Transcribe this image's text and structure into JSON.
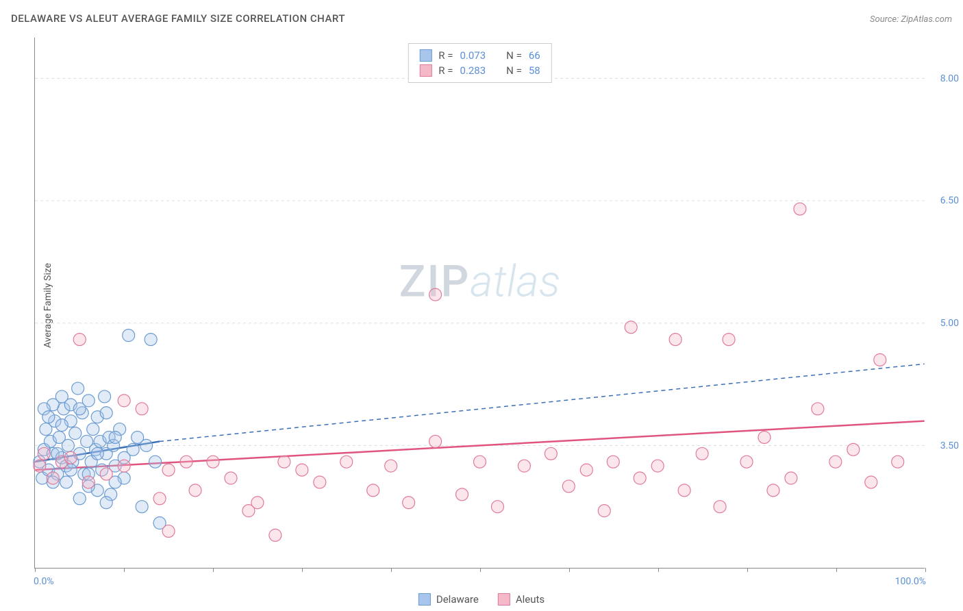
{
  "header": {
    "title": "DELAWARE VS ALEUT AVERAGE FAMILY SIZE CORRELATION CHART",
    "source_prefix": "Source: ",
    "source_name": "ZipAtlas.com"
  },
  "axes": {
    "ylabel": "Average Family Size",
    "ylabel_fontsize": 14,
    "ylabel_color": "#555555",
    "x_min_label": "0.0%",
    "x_max_label": "100.0%",
    "x_tick_color": "#888888",
    "axis_label_color": "#5b8fd6",
    "xlim": [
      0,
      100
    ],
    "ylim": [
      2.0,
      8.5
    ],
    "y_ticks": [
      3.5,
      5.0,
      6.5,
      8.0
    ],
    "x_tick_positions": [
      0,
      10,
      20,
      30,
      40,
      50,
      60,
      70,
      80,
      90,
      100
    ],
    "grid_color": "#dddddd",
    "grid_dash": "4,4",
    "axis_line_color": "#888888"
  },
  "chart": {
    "type": "scatter",
    "background_color": "#ffffff",
    "marker_radius": 9,
    "marker_stroke_width": 1.2,
    "marker_fill_opacity": 0.35,
    "series": [
      {
        "id": "delaware",
        "label": "Delaware",
        "color_fill": "#a8c5ec",
        "color_stroke": "#6b9bd1",
        "points": [
          [
            0.5,
            3.3
          ],
          [
            0.8,
            3.1
          ],
          [
            1.0,
            3.45
          ],
          [
            1.2,
            3.7
          ],
          [
            1.5,
            3.2
          ],
          [
            1.7,
            3.55
          ],
          [
            2.0,
            3.4
          ],
          [
            2.2,
            3.8
          ],
          [
            2.5,
            3.15
          ],
          [
            2.7,
            3.6
          ],
          [
            3.0,
            3.35
          ],
          [
            3.2,
            3.95
          ],
          [
            3.5,
            3.25
          ],
          [
            3.7,
            3.5
          ],
          [
            4.0,
            4.0
          ],
          [
            4.2,
            3.3
          ],
          [
            4.5,
            3.65
          ],
          [
            4.8,
            4.2
          ],
          [
            5.0,
            3.4
          ],
          [
            5.3,
            3.9
          ],
          [
            5.5,
            3.15
          ],
          [
            5.8,
            3.55
          ],
          [
            6.0,
            4.05
          ],
          [
            6.3,
            3.3
          ],
          [
            6.5,
            3.7
          ],
          [
            6.8,
            3.45
          ],
          [
            7.0,
            2.95
          ],
          [
            7.3,
            3.55
          ],
          [
            7.5,
            3.2
          ],
          [
            7.8,
            4.1
          ],
          [
            8.0,
            3.4
          ],
          [
            8.3,
            3.6
          ],
          [
            8.5,
            2.9
          ],
          [
            8.8,
            3.5
          ],
          [
            9.0,
            3.25
          ],
          [
            9.5,
            3.7
          ],
          [
            10.0,
            3.35
          ],
          [
            10.5,
            4.85
          ],
          [
            11.0,
            3.45
          ],
          [
            11.5,
            3.6
          ],
          [
            12.0,
            2.75
          ],
          [
            12.5,
            3.5
          ],
          [
            13.0,
            4.8
          ],
          [
            13.5,
            3.3
          ],
          [
            14.0,
            2.55
          ],
          [
            2.0,
            4.0
          ],
          [
            3.0,
            4.1
          ],
          [
            4.0,
            3.8
          ],
          [
            5.0,
            2.85
          ],
          [
            6.0,
            3.0
          ],
          [
            7.0,
            3.85
          ],
          [
            8.0,
            2.8
          ],
          [
            9.0,
            3.6
          ],
          [
            10.0,
            3.1
          ],
          [
            1.0,
            3.95
          ],
          [
            2.0,
            3.05
          ],
          [
            3.0,
            3.75
          ],
          [
            4.0,
            3.2
          ],
          [
            5.0,
            3.95
          ],
          [
            6.0,
            3.15
          ],
          [
            7.0,
            3.4
          ],
          [
            8.0,
            3.9
          ],
          [
            9.0,
            3.05
          ],
          [
            1.5,
            3.85
          ],
          [
            2.5,
            3.4
          ],
          [
            3.5,
            3.05
          ]
        ],
        "trend": {
          "x1": 0,
          "y1": 3.3,
          "x2": 14,
          "y2": 3.55,
          "dash_x2": 100,
          "dash_y2": 4.5,
          "line_width": 2.5,
          "color": "#3b6fb5"
        },
        "stats": {
          "R": "0.073",
          "N": "66"
        }
      },
      {
        "id": "aleut",
        "label": "Aleuts",
        "color_fill": "#f4b8c8",
        "color_stroke": "#e07a9a",
        "points": [
          [
            0.5,
            3.25
          ],
          [
            1.0,
            3.4
          ],
          [
            2.0,
            3.1
          ],
          [
            3.0,
            3.3
          ],
          [
            4.0,
            3.35
          ],
          [
            5.0,
            4.8
          ],
          [
            6.0,
            3.05
          ],
          [
            8.0,
            3.15
          ],
          [
            10.0,
            4.05
          ],
          [
            12.0,
            3.95
          ],
          [
            14.0,
            2.85
          ],
          [
            15.0,
            3.2
          ],
          [
            17.0,
            3.3
          ],
          [
            18.0,
            2.95
          ],
          [
            20.0,
            3.3
          ],
          [
            22.0,
            3.1
          ],
          [
            24.0,
            2.7
          ],
          [
            25.0,
            2.8
          ],
          [
            27.0,
            2.4
          ],
          [
            28.0,
            3.3
          ],
          [
            30.0,
            3.2
          ],
          [
            32.0,
            3.05
          ],
          [
            35.0,
            3.3
          ],
          [
            38.0,
            2.95
          ],
          [
            40.0,
            3.25
          ],
          [
            42.0,
            2.8
          ],
          [
            45.0,
            3.55
          ],
          [
            45.0,
            5.35
          ],
          [
            48.0,
            2.9
          ],
          [
            50.0,
            3.3
          ],
          [
            52.0,
            2.75
          ],
          [
            55.0,
            3.25
          ],
          [
            58.0,
            3.4
          ],
          [
            60.0,
            3.0
          ],
          [
            62.0,
            3.2
          ],
          [
            64.0,
            2.7
          ],
          [
            65.0,
            3.3
          ],
          [
            67.0,
            4.95
          ],
          [
            68.0,
            3.1
          ],
          [
            70.0,
            3.25
          ],
          [
            72.0,
            4.8
          ],
          [
            73.0,
            2.95
          ],
          [
            75.0,
            3.4
          ],
          [
            77.0,
            2.75
          ],
          [
            78.0,
            4.8
          ],
          [
            80.0,
            3.3
          ],
          [
            82.0,
            3.6
          ],
          [
            83.0,
            2.95
          ],
          [
            85.0,
            3.1
          ],
          [
            86.0,
            6.4
          ],
          [
            88.0,
            3.95
          ],
          [
            90.0,
            3.3
          ],
          [
            92.0,
            3.45
          ],
          [
            94.0,
            3.05
          ],
          [
            95.0,
            4.55
          ],
          [
            97.0,
            3.3
          ],
          [
            15.0,
            2.45
          ],
          [
            10.0,
            3.25
          ]
        ],
        "trend": {
          "x1": 0,
          "y1": 3.2,
          "x2": 100,
          "y2": 3.8,
          "line_width": 2.5,
          "color": "#e0557f"
        },
        "stats": {
          "R": "0.283",
          "N": "58"
        }
      }
    ]
  },
  "stats_box": {
    "border_color": "#cccccc",
    "label_color": "#555555",
    "value_color": "#5b8fd6",
    "R_label": "R = ",
    "N_label": "N = "
  },
  "watermark": {
    "zip": "ZIP",
    "atlas": "atlas",
    "zip_color": "rgba(120,140,160,0.35)",
    "atlas_color": "rgba(120,170,200,0.3)",
    "fontsize": 64
  }
}
